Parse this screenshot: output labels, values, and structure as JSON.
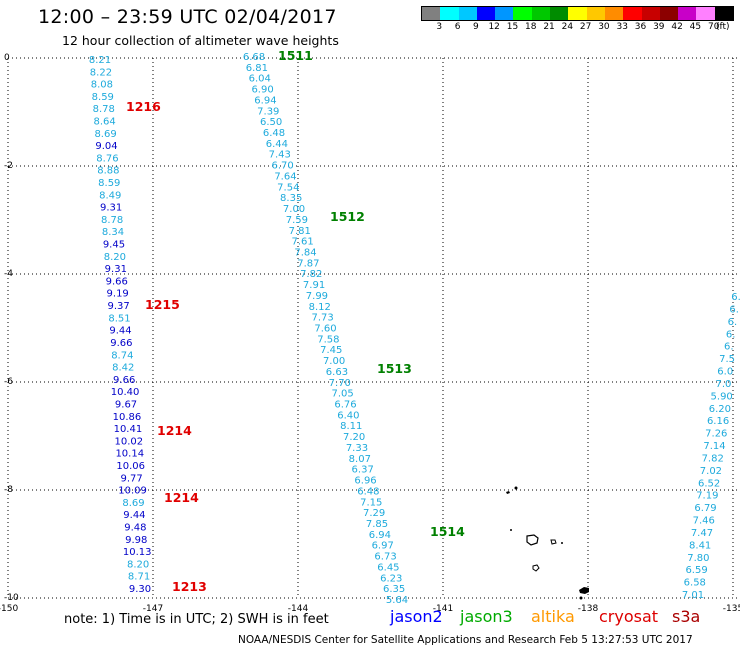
{
  "header": {
    "title": "12:00 – 23:59 UTC 02/04/2017",
    "subtitle": "12 hour collection of altimeter wave heights"
  },
  "color_scale": {
    "unit": "(ft)",
    "labels": [
      "3",
      "6",
      "9",
      "12",
      "15",
      "18",
      "21",
      "24",
      "27",
      "30",
      "33",
      "36",
      "39",
      "42",
      "45",
      "70"
    ],
    "colors": [
      "#808080",
      "#00ffff",
      "#00c8ff",
      "#0000ff",
      "#0096ff",
      "#00ff00",
      "#00c800",
      "#008c00",
      "#ffff00",
      "#ffc800",
      "#ff8c00",
      "#ff0000",
      "#c80000",
      "#8c0000",
      "#c800c8",
      "#ff80ff",
      "#000000"
    ]
  },
  "map": {
    "lat_labels": [
      "0",
      "-2",
      "-4",
      "-6",
      "-8",
      "-10"
    ],
    "lon_labels": [
      "-150",
      "-147",
      "-144",
      "-141",
      "-138",
      "-135"
    ],
    "lat_values": [
      0,
      -2,
      -4,
      -6,
      -8,
      -10
    ],
    "lon_values": [
      -150,
      -147,
      -144,
      -141,
      -138,
      -135
    ],
    "track_colors": {
      "light": "#1eaadc",
      "dark": "#0000c8"
    },
    "tracks": [
      {
        "name": "jason2-west",
        "points": [
          [
            "8.21",
            "l"
          ],
          [
            "8.22",
            "l"
          ],
          [
            "8.08",
            "l"
          ],
          [
            "8.59",
            "l"
          ],
          [
            "8.78",
            "l"
          ],
          [
            "8.64",
            "l"
          ],
          [
            "8.69",
            "l"
          ],
          [
            "9.04",
            "d"
          ],
          [
            "8.76",
            "l"
          ],
          [
            "8.88",
            "l"
          ],
          [
            "8.59",
            "l"
          ],
          [
            "8.49",
            "l"
          ],
          [
            "9.31",
            "d"
          ],
          [
            "8.78",
            "l"
          ],
          [
            "8.34",
            "l"
          ],
          [
            "9.45",
            "d"
          ],
          [
            "8.20",
            "l"
          ],
          [
            "9.31",
            "d"
          ],
          [
            "9.66",
            "d"
          ],
          [
            "9.19",
            "d"
          ],
          [
            "9.37",
            "d"
          ],
          [
            "8.51",
            "l"
          ],
          [
            "9.44",
            "d"
          ],
          [
            "9.66",
            "d"
          ],
          [
            "8.74",
            "l"
          ],
          [
            "8.42",
            "l"
          ],
          [
            "9.66",
            "d"
          ],
          [
            "10.40",
            "d"
          ],
          [
            "9.67",
            "d"
          ],
          [
            "10.86",
            "d"
          ],
          [
            "10.41",
            "d"
          ],
          [
            "10.02",
            "d"
          ],
          [
            "10.14",
            "d"
          ],
          [
            "10.06",
            "d"
          ],
          [
            "9.77",
            "d"
          ],
          [
            "10.09",
            "d"
          ],
          [
            "8.69",
            "l"
          ],
          [
            "9.44",
            "d"
          ],
          [
            "9.48",
            "d"
          ],
          [
            "9.98",
            "d"
          ],
          [
            "10.13",
            "d"
          ],
          [
            "8.20",
            "l"
          ],
          [
            "8.71",
            "l"
          ],
          [
            "9.30",
            "d"
          ]
        ]
      },
      {
        "name": "jason2-middle",
        "points": [
          [
            "6.68",
            "l"
          ],
          [
            "6.81",
            "l"
          ],
          [
            "6.04",
            "l"
          ],
          [
            "6.90",
            "l"
          ],
          [
            "6.94",
            "l"
          ],
          [
            "7.39",
            "l"
          ],
          [
            "6.50",
            "l"
          ],
          [
            "6.48",
            "l"
          ],
          [
            "6.44",
            "l"
          ],
          [
            "7.43",
            "l"
          ],
          [
            "6.70",
            "l"
          ],
          [
            "7.64",
            "l"
          ],
          [
            "7.54",
            "l"
          ],
          [
            "8.35",
            "l"
          ],
          [
            "7.00",
            "l"
          ],
          [
            "7.59",
            "l"
          ],
          [
            "7.81",
            "l"
          ],
          [
            "7.61",
            "l"
          ],
          [
            "7.84",
            "l"
          ],
          [
            "7.87",
            "l"
          ],
          [
            "7.82",
            "l"
          ],
          [
            "7.91",
            "l"
          ],
          [
            "7.99",
            "l"
          ],
          [
            "8.12",
            "l"
          ],
          [
            "7.73",
            "l"
          ],
          [
            "7.60",
            "l"
          ],
          [
            "7.58",
            "l"
          ],
          [
            "7.45",
            "l"
          ],
          [
            "7.00",
            "l"
          ],
          [
            "6.63",
            "l"
          ],
          [
            "7.70",
            "l"
          ],
          [
            "7.05",
            "l"
          ],
          [
            "6.76",
            "l"
          ],
          [
            "6.40",
            "l"
          ],
          [
            "8.11",
            "l"
          ],
          [
            "7.20",
            "l"
          ],
          [
            "7.33",
            "l"
          ],
          [
            "8.07",
            "l"
          ],
          [
            "6.37",
            "l"
          ],
          [
            "6.96",
            "l"
          ],
          [
            "6.48",
            "l"
          ],
          [
            "7.15",
            "l"
          ],
          [
            "7.29",
            "l"
          ],
          [
            "7.85",
            "l"
          ],
          [
            "6.94",
            "l"
          ],
          [
            "6.97",
            "l"
          ],
          [
            "6.73",
            "l"
          ],
          [
            "6.45",
            "l"
          ],
          [
            "6.23",
            "l"
          ],
          [
            "6.35",
            "l"
          ],
          [
            "5.64",
            "l"
          ]
        ]
      },
      {
        "name": "jason2-east",
        "points": [
          [
            "6.",
            "l"
          ],
          [
            "6.",
            "l"
          ],
          [
            "6.",
            "l"
          ],
          [
            "6.",
            "l"
          ],
          [
            "6.",
            "l"
          ],
          [
            "7.5",
            "l"
          ],
          [
            "6.0",
            "l"
          ],
          [
            "7.0",
            "l"
          ],
          [
            "5.90",
            "l"
          ],
          [
            "6.20",
            "l"
          ],
          [
            "6.16",
            "l"
          ],
          [
            "7.26",
            "l"
          ],
          [
            "7.14",
            "l"
          ],
          [
            "7.82",
            "l"
          ],
          [
            "7.02",
            "l"
          ],
          [
            "6.52",
            "l"
          ],
          [
            "7.19",
            "l"
          ],
          [
            "6.79",
            "l"
          ],
          [
            "7.46",
            "l"
          ],
          [
            "7.47",
            "l"
          ],
          [
            "8.41",
            "l"
          ],
          [
            "7.80",
            "l"
          ],
          [
            "6.59",
            "l"
          ],
          [
            "6.58",
            "l"
          ],
          [
            "7.01",
            "l"
          ]
        ]
      }
    ],
    "time_labels": [
      {
        "text": "1511",
        "color": "green"
      },
      {
        "text": "1216",
        "color": "red"
      },
      {
        "text": "1512",
        "color": "green"
      },
      {
        "text": "1215",
        "color": "red"
      },
      {
        "text": "1513",
        "color": "green"
      },
      {
        "text": "1214",
        "color": "red"
      },
      {
        "text": "1214",
        "color": "red"
      },
      {
        "text": "1514",
        "color": "green"
      },
      {
        "text": "1213",
        "color": "red"
      }
    ]
  },
  "footer": {
    "note": "note: 1) Time is in UTC; 2) SWH is in feet",
    "legend": [
      {
        "label": "jason2",
        "color": "#0000ff"
      },
      {
        "label": "jason3",
        "color": "#00aa00"
      },
      {
        "label": "altika",
        "color": "#ff9900"
      },
      {
        "label": "cryosat",
        "color": "#dd0000"
      },
      {
        "label": "s3a",
        "color": "#aa0000"
      }
    ],
    "credit": "NOAA/NESDIS Center for Satellite Applications and Research   Feb  5 13:27:53 UTC 2017"
  }
}
